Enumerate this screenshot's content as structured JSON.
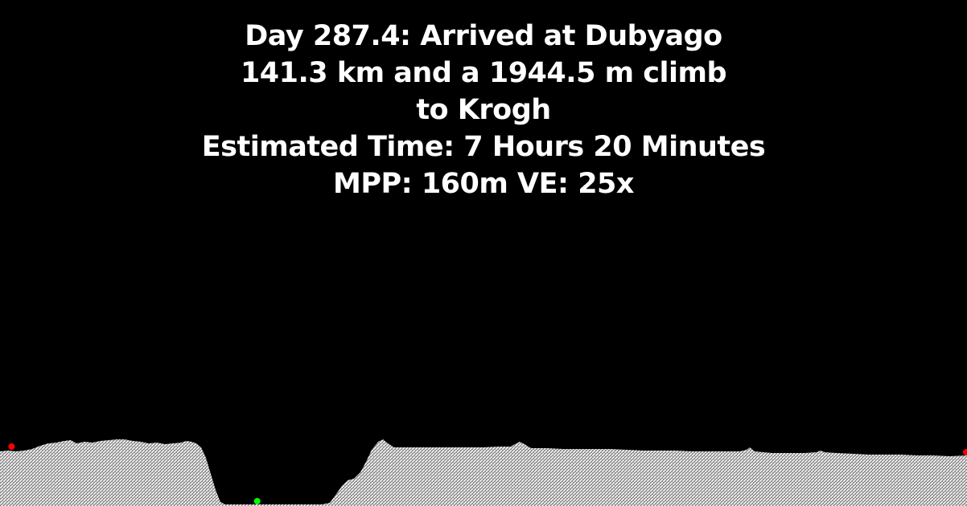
{
  "caption": {
    "line1": "Day 287.4: Arrived at Dubyago",
    "line2": "141.3 km and a 1944.5 m climb",
    "line3": "to Krogh",
    "line4": "Estimated Time: 7 Hours 20 Minutes",
    "line5": "MPP: 160m VE: 25x"
  },
  "colors": {
    "background": "#000000",
    "text": "#ffffff",
    "terrain_fill": "#d8d8d8",
    "terrain_hatch": "#ffffff",
    "start_marker": "#ff0000",
    "end_marker": "#ff0000",
    "current_marker": "#00ff00"
  },
  "markers": [
    {
      "name": "start-marker",
      "icon": "red-dot-icon",
      "position_fraction": 0.012
    },
    {
      "name": "current-position-marker",
      "icon": "green-dot-icon",
      "position_fraction": 0.266
    },
    {
      "name": "end-marker",
      "icon": "red-dot-icon",
      "position_fraction": 1.0
    }
  ]
}
